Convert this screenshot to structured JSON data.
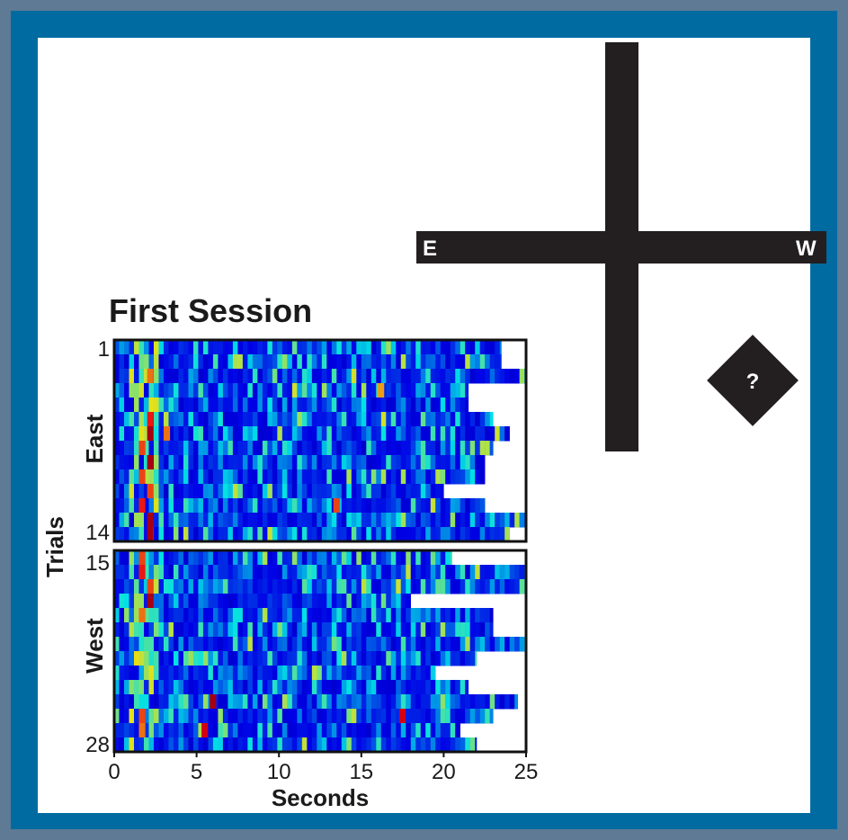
{
  "colors": {
    "outer_border": "#5f7a94",
    "frame": "#006ba1",
    "background": "#ffffff",
    "maze": "#231f20",
    "heat_low": "#2b3c9e",
    "heat_high": "#d7191c"
  },
  "maze": {
    "east_label": "E",
    "west_label": "W",
    "goal_label": "?"
  },
  "chart_data": {
    "type": "heatmap",
    "title": "First Session",
    "xlabel": "Seconds",
    "ylabel": "Trials",
    "xlim": [
      0,
      25
    ],
    "x_ticks": [
      "0",
      "5",
      "10",
      "15",
      "20",
      "25"
    ],
    "colormap": "jet",
    "panels": [
      {
        "name": "East",
        "first_trial_label": "1",
        "last_trial_label": "14",
        "trials": [
          1,
          2,
          3,
          4,
          5,
          6,
          7,
          8,
          9,
          10,
          11,
          12,
          13,
          14
        ],
        "trial_end_seconds": [
          23.5,
          23.5,
          25,
          21.5,
          21.5,
          23,
          24,
          23,
          22.5,
          22.5,
          20,
          22.5,
          25,
          24
        ],
        "high_activity_bins": [
          {
            "trial": 3,
            "second": 2,
            "intensity": 0.75
          },
          {
            "trial": 4,
            "second": 16,
            "intensity": 0.7
          },
          {
            "trial": 6,
            "second": 2,
            "intensity": 0.85
          },
          {
            "trial": 7,
            "second": 2,
            "intensity": 0.95
          },
          {
            "trial": 7,
            "second": 3,
            "intensity": 0.75
          },
          {
            "trial": 8,
            "second": 1.5,
            "intensity": 0.8
          },
          {
            "trial": 9,
            "second": 2,
            "intensity": 0.95
          },
          {
            "trial": 10,
            "second": 1.5,
            "intensity": 0.8
          },
          {
            "trial": 11,
            "second": 2,
            "intensity": 0.8
          },
          {
            "trial": 12,
            "second": 1.5,
            "intensity": 0.85
          },
          {
            "trial": 12,
            "second": 13.3,
            "intensity": 0.8
          },
          {
            "trial": 13,
            "second": 2,
            "intensity": 0.95
          },
          {
            "trial": 14,
            "second": 2,
            "intensity": 0.95
          }
        ]
      },
      {
        "name": "West",
        "first_trial_label": "15",
        "last_trial_label": "28",
        "trials": [
          15,
          16,
          17,
          18,
          19,
          20,
          21,
          22,
          23,
          24,
          25,
          26,
          27,
          28
        ],
        "trial_end_seconds": [
          20.5,
          25,
          25,
          18,
          23,
          23,
          25,
          22,
          19.5,
          21.5,
          24.5,
          23,
          21,
          22
        ],
        "high_activity_bins": [
          {
            "trial": 15,
            "second": 1.5,
            "intensity": 0.8
          },
          {
            "trial": 16,
            "second": 1.5,
            "intensity": 0.85
          },
          {
            "trial": 17,
            "second": 2,
            "intensity": 0.8
          },
          {
            "trial": 18,
            "second": 2,
            "intensity": 0.95
          },
          {
            "trial": 19,
            "second": 1.5,
            "intensity": 0.75
          },
          {
            "trial": 25,
            "second": 5.8,
            "intensity": 0.95
          },
          {
            "trial": 26,
            "second": 1.5,
            "intensity": 0.8
          },
          {
            "trial": 26,
            "second": 17.3,
            "intensity": 0.9
          },
          {
            "trial": 27,
            "second": 5.3,
            "intensity": 0.9
          },
          {
            "trial": 27,
            "second": 1.5,
            "intensity": 0.75
          }
        ]
      }
    ]
  }
}
